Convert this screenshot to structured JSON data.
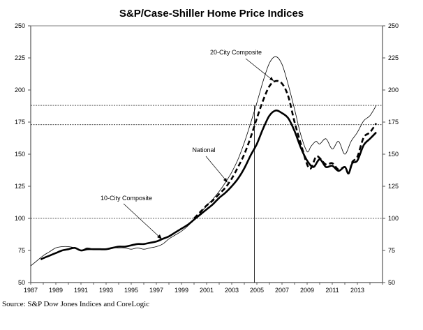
{
  "chart_data": {
    "type": "line",
    "title": "S&P/Case-Shiller Home Price Indices",
    "xlabel": "",
    "ylabel": "",
    "xlim": [
      1987,
      2015
    ],
    "ylim": [
      50,
      250
    ],
    "x_ticks": [
      "1987",
      "1989",
      "1991",
      "1993",
      "1995",
      "1997",
      "1999",
      "2001",
      "2003",
      "2005",
      "2007",
      "2009",
      "2011",
      "2013"
    ],
    "y_ticks": [
      50,
      75,
      100,
      125,
      150,
      175,
      200,
      225,
      250
    ],
    "y_ticks_right": [
      50,
      75,
      100,
      125,
      150,
      175,
      200,
      225,
      250
    ],
    "grid": false,
    "reference_lines": [
      {
        "orientation": "horizontal",
        "value": 100,
        "style": "dotted"
      },
      {
        "orientation": "horizontal",
        "value": 173,
        "style": "dotted"
      },
      {
        "orientation": "horizontal",
        "value": 188,
        "style": "dotted"
      },
      {
        "orientation": "vertical",
        "value": 2004.8,
        "style": "solid"
      }
    ],
    "series": [
      {
        "name": "10-City Composite",
        "style": "thin-solid",
        "x": [
          1987,
          1987.5,
          1988,
          1988.5,
          1989,
          1989.5,
          1990,
          1990.5,
          1991,
          1991.5,
          1992,
          1992.5,
          1993,
          1993.5,
          1994,
          1994.5,
          1995,
          1995.5,
          1996,
          1996.5,
          1997,
          1997.5,
          1998,
          1998.5,
          1999,
          1999.5,
          2000,
          2000.5,
          2001,
          2001.5,
          2002,
          2002.5,
          2003,
          2003.5,
          2004,
          2004.5,
          2005,
          2005.5,
          2006,
          2006.5,
          2007,
          2007.5,
          2008,
          2008.5,
          2009,
          2009.3,
          2009.7,
          2010,
          2010.5,
          2011,
          2011.5,
          2012,
          2012.5,
          2013,
          2013.5,
          2014,
          2014.5
        ],
        "values": [
          63,
          67,
          71,
          74,
          77,
          78,
          78,
          77,
          75,
          77,
          76,
          76,
          76,
          77,
          77,
          77,
          76,
          77,
          76,
          77,
          78,
          80,
          84,
          87,
          90,
          94,
          99,
          104,
          110,
          115,
          121,
          128,
          136,
          146,
          159,
          174,
          190,
          207,
          221,
          226,
          220,
          204,
          185,
          165,
          152,
          156,
          160,
          158,
          162,
          154,
          160,
          150,
          160,
          167,
          176,
          180,
          188
        ]
      },
      {
        "name": "National",
        "style": "thick-solid",
        "x": [
          1987.8,
          1988,
          1988.5,
          1989,
          1989.5,
          1990,
          1990.5,
          1991,
          1991.5,
          1992,
          1992.5,
          1993,
          1993.5,
          1994,
          1994.5,
          1995,
          1995.5,
          1996,
          1996.5,
          1997,
          1997.5,
          1998,
          1998.5,
          1999,
          1999.5,
          2000,
          2000.5,
          2001,
          2001.5,
          2002,
          2002.5,
          2003,
          2003.5,
          2004,
          2004.5,
          2005,
          2005.5,
          2006,
          2006.5,
          2007,
          2007.5,
          2008,
          2008.5,
          2009,
          2009.5,
          2010,
          2010.5,
          2011,
          2011.5,
          2012,
          2012.3,
          2012.6,
          2013,
          2013.5,
          2014,
          2014.5
        ],
        "values": [
          68,
          69,
          71,
          73,
          75,
          76,
          77,
          75,
          76,
          76,
          76,
          76,
          77,
          78,
          78,
          79,
          80,
          80,
          81,
          82,
          84,
          86,
          89,
          92,
          95,
          99,
          103,
          107,
          111,
          116,
          120,
          125,
          131,
          139,
          149,
          158,
          170,
          180,
          184,
          182,
          178,
          168,
          155,
          145,
          140,
          146,
          140,
          141,
          137,
          140,
          135,
          143,
          145,
          157,
          162,
          167
        ]
      },
      {
        "name": "20-City Composite",
        "style": "thick-dashed",
        "x": [
          2000,
          2000.5,
          2001,
          2001.5,
          2002,
          2002.5,
          2003,
          2003.5,
          2004,
          2004.5,
          2005,
          2005.5,
          2006,
          2006.5,
          2007,
          2007.5,
          2008,
          2008.5,
          2009,
          2009.3,
          2009.7,
          2010,
          2010.5,
          2011,
          2011.5,
          2012,
          2012.3,
          2012.6,
          2013,
          2013.5,
          2014,
          2014.5
        ],
        "values": [
          100,
          105,
          110,
          114,
          119,
          124,
          131,
          140,
          150,
          163,
          178,
          192,
          203,
          207,
          205,
          195,
          175,
          158,
          142,
          139,
          148,
          147,
          142,
          143,
          138,
          140,
          135,
          144,
          148,
          163,
          167,
          174
        ]
      }
    ],
    "annotations": [
      {
        "text": "20-City Composite",
        "points_to": "20-City Composite"
      },
      {
        "text": "National",
        "points_to": "National"
      },
      {
        "text": "10-City Composite",
        "points_to": "10-City Composite"
      }
    ],
    "legend": "none",
    "source": "Source: S&P Dow Jones Indices and CoreLogic"
  }
}
